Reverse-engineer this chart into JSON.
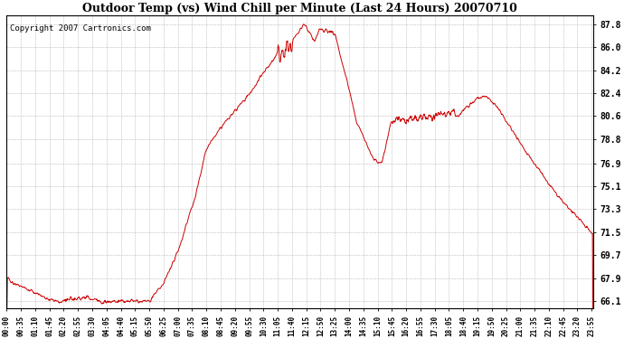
{
  "title": "Outdoor Temp (vs) Wind Chill per Minute (Last 24 Hours) 20070710",
  "copyright": "Copyright 2007 Cartronics.com",
  "line_color": "#cc0000",
  "background_color": "#ffffff",
  "grid_color": "#aaaaaa",
  "yticks": [
    66.1,
    67.9,
    69.7,
    71.5,
    73.3,
    75.1,
    76.9,
    78.8,
    80.6,
    82.4,
    84.2,
    86.0,
    87.8
  ],
  "ylim": [
    65.5,
    88.5
  ],
  "xlim": [
    0,
    1439
  ],
  "title_fontsize": 9,
  "copyright_fontsize": 6.5
}
